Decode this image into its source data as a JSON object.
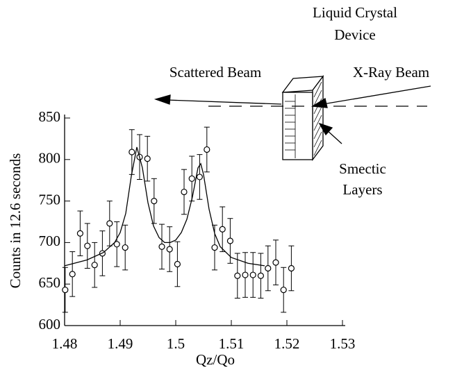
{
  "chart_data": {
    "type": "scatter",
    "x_label": "Qz/Qo",
    "y_label": "Counts in 12.6 seconds",
    "xlim": [
      1.48,
      1.53
    ],
    "xticks": [
      1.48,
      1.49,
      1.5,
      1.51,
      1.52,
      1.53
    ],
    "ylim": [
      600,
      850
    ],
    "yticks": [
      600,
      650,
      700,
      750,
      800,
      850
    ],
    "series": [
      {
        "color": "#000000",
        "x": [
          1.4801,
          1.4814,
          1.4828,
          1.4841,
          1.4854,
          1.4868,
          1.4881,
          1.4894,
          1.4909,
          1.4921,
          1.4935,
          1.4949,
          1.4961,
          1.4975,
          1.4989,
          1.5003,
          1.5015,
          1.5029,
          1.5043,
          1.5056,
          1.507,
          1.5084,
          1.5098,
          1.5111,
          1.5125,
          1.5139,
          1.5153,
          1.5166,
          1.518,
          1.5194,
          1.5208
        ],
        "values": [
          643,
          662,
          711,
          696,
          673,
          687,
          723,
          698,
          694,
          809,
          803,
          801,
          750,
          695,
          692,
          674,
          761,
          777,
          779,
          812,
          694,
          716,
          702,
          660,
          661,
          661,
          660,
          669,
          676,
          643,
          669
        ],
        "errors": [
          27,
          27,
          27,
          27,
          27,
          27,
          27,
          27,
          27,
          27,
          27,
          27,
          27,
          27,
          27,
          27,
          27,
          27,
          27,
          27,
          27,
          27,
          27,
          27,
          27,
          27,
          27,
          27,
          27,
          27,
          27
        ]
      },
      {
        "color": "#000000",
        "x": [
          1.48,
          1.484,
          1.487,
          1.489,
          1.49,
          1.491,
          1.492,
          1.493,
          1.494,
          1.495,
          1.496,
          1.497,
          1.498,
          1.499,
          1.5,
          1.501,
          1.502,
          1.503,
          1.504,
          1.5045,
          1.505,
          1.506,
          1.507,
          1.508,
          1.51,
          1.513,
          1.516
        ],
        "values": [
          672,
          679,
          688,
          700,
          712,
          735,
          780,
          815,
          790,
          748,
          720,
          706,
          700,
          700,
          703,
          712,
          728,
          755,
          790,
          795,
          782,
          740,
          711,
          695,
          682,
          675,
          672
        ]
      }
    ],
    "annotations": [
      "Liquid Crystal",
      "Device",
      "Scattered Beam",
      "X-Ray Beam",
      "Smectic",
      "Layers"
    ]
  }
}
